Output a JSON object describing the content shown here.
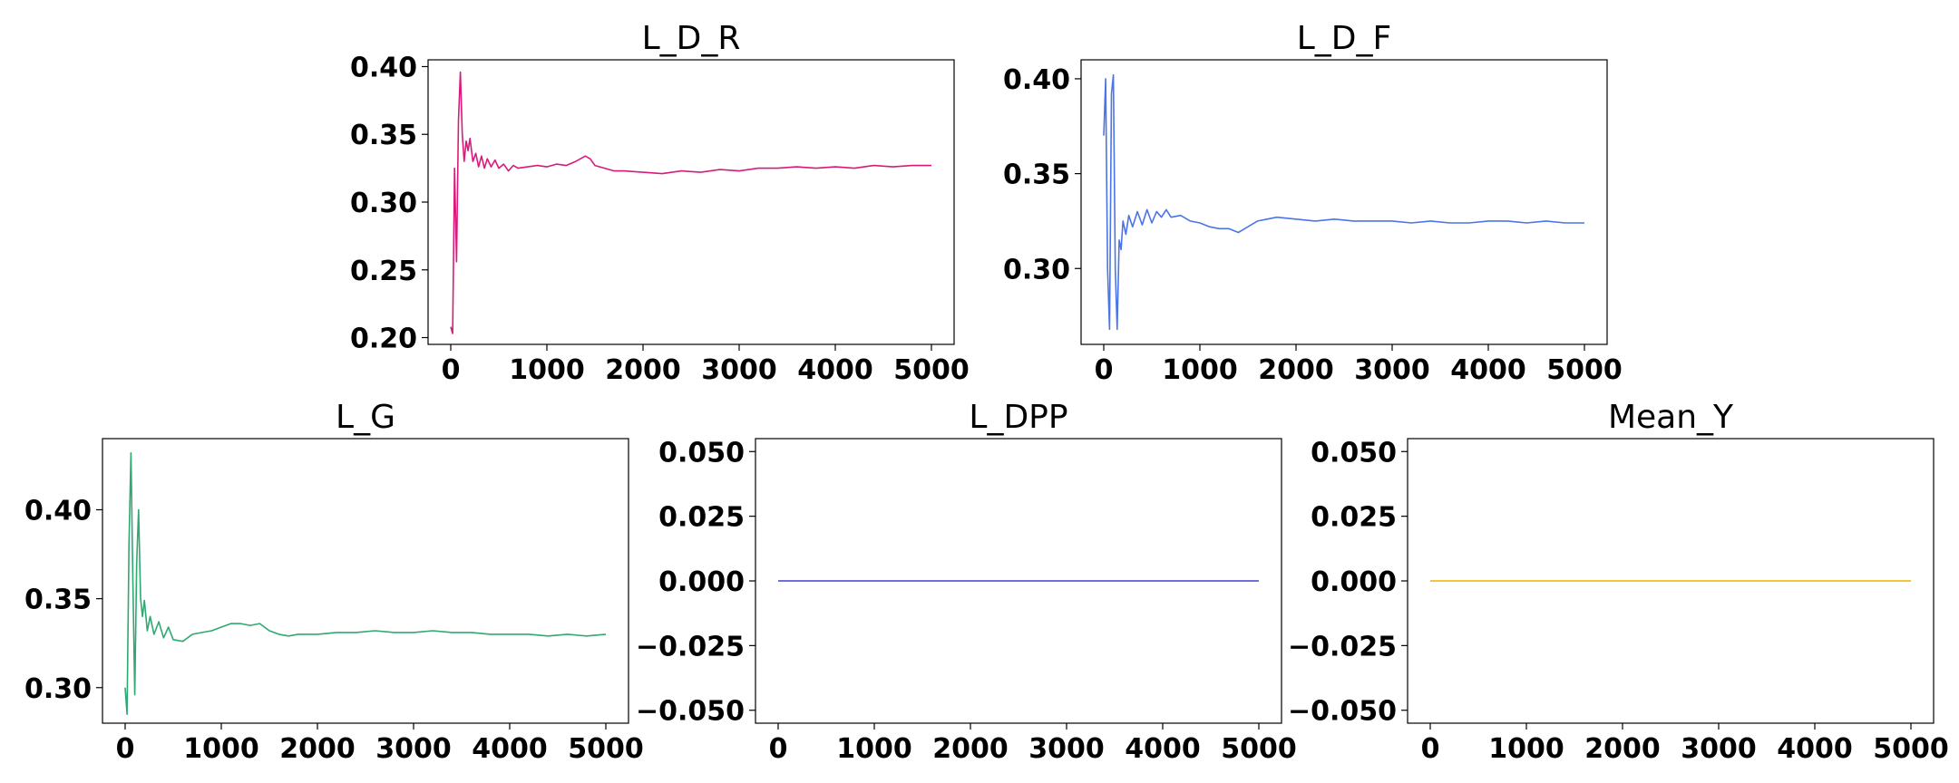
{
  "chart_data": [
    {
      "type": "line",
      "title": "L_D_R",
      "xlim": [
        0,
        5000
      ],
      "ylim": [
        0.195,
        0.405
      ],
      "xticks": [
        0,
        1000,
        2000,
        3000,
        4000,
        5000
      ],
      "xtick_labels": [
        "0",
        "1000",
        "2000",
        "3000",
        "4000",
        "5000"
      ],
      "yticks": [
        0.2,
        0.25,
        0.3,
        0.35,
        0.4
      ],
      "ytick_labels": [
        "0.20",
        "0.25",
        "0.30",
        "0.35",
        "0.40"
      ],
      "grid": false,
      "color": "#d81b7a",
      "series": [
        {
          "x": [
            0,
            20,
            40,
            60,
            80,
            100,
            120,
            140,
            160,
            180,
            200,
            230,
            260,
            290,
            320,
            350,
            380,
            420,
            460,
            500,
            550,
            600,
            650,
            700,
            800,
            900,
            1000,
            1100,
            1200,
            1300,
            1400,
            1450,
            1500,
            1600,
            1700,
            1800,
            2000,
            2200,
            2400,
            2600,
            2800,
            3000,
            3200,
            3400,
            3600,
            3800,
            4000,
            4200,
            4400,
            4600,
            4800,
            5000
          ],
          "y": [
            0.208,
            0.203,
            0.325,
            0.256,
            0.36,
            0.396,
            0.35,
            0.33,
            0.345,
            0.338,
            0.347,
            0.33,
            0.336,
            0.326,
            0.334,
            0.325,
            0.332,
            0.326,
            0.331,
            0.325,
            0.328,
            0.323,
            0.327,
            0.325,
            0.326,
            0.327,
            0.326,
            0.328,
            0.327,
            0.33,
            0.334,
            0.332,
            0.327,
            0.325,
            0.323,
            0.323,
            0.322,
            0.321,
            0.323,
            0.322,
            0.324,
            0.323,
            0.325,
            0.325,
            0.326,
            0.325,
            0.326,
            0.325,
            0.327,
            0.326,
            0.327,
            0.327
          ]
        }
      ]
    },
    {
      "type": "line",
      "title": "L_D_F",
      "xlim": [
        0,
        5000
      ],
      "ylim": [
        0.26,
        0.41
      ],
      "xticks": [
        0,
        1000,
        2000,
        3000,
        4000,
        5000
      ],
      "xtick_labels": [
        "0",
        "1000",
        "2000",
        "3000",
        "4000",
        "5000"
      ],
      "yticks": [
        0.3,
        0.35,
        0.4
      ],
      "ytick_labels": [
        "0.30",
        "0.35",
        "0.40"
      ],
      "grid": false,
      "color": "#4b74e8",
      "series": [
        {
          "x": [
            0,
            20,
            40,
            60,
            80,
            100,
            120,
            140,
            160,
            180,
            200,
            230,
            260,
            300,
            350,
            400,
            450,
            500,
            550,
            600,
            650,
            700,
            800,
            900,
            1000,
            1100,
            1200,
            1300,
            1400,
            1500,
            1600,
            1700,
            1800,
            2000,
            2200,
            2400,
            2600,
            2800,
            3000,
            3200,
            3400,
            3600,
            3800,
            4000,
            4200,
            4400,
            4600,
            4800,
            5000
          ],
          "y": [
            0.37,
            0.4,
            0.3,
            0.268,
            0.392,
            0.402,
            0.3,
            0.268,
            0.315,
            0.31,
            0.325,
            0.318,
            0.328,
            0.322,
            0.33,
            0.323,
            0.331,
            0.324,
            0.33,
            0.327,
            0.331,
            0.327,
            0.328,
            0.325,
            0.324,
            0.322,
            0.321,
            0.321,
            0.319,
            0.322,
            0.325,
            0.326,
            0.327,
            0.326,
            0.325,
            0.326,
            0.325,
            0.325,
            0.325,
            0.324,
            0.325,
            0.324,
            0.324,
            0.325,
            0.325,
            0.324,
            0.325,
            0.324,
            0.324
          ]
        }
      ]
    },
    {
      "type": "line",
      "title": "L_G",
      "xlim": [
        0,
        5000
      ],
      "ylim": [
        0.28,
        0.44
      ],
      "xticks": [
        0,
        1000,
        2000,
        3000,
        4000,
        5000
      ],
      "xtick_labels": [
        "0",
        "1000",
        "2000",
        "3000",
        "4000",
        "5000"
      ],
      "yticks": [
        0.3,
        0.35,
        0.4
      ],
      "ytick_labels": [
        "0.30",
        "0.35",
        "0.40"
      ],
      "grid": false,
      "color": "#2fa872",
      "series": [
        {
          "x": [
            0,
            20,
            40,
            60,
            80,
            100,
            120,
            140,
            160,
            180,
            200,
            230,
            260,
            300,
            350,
            400,
            450,
            500,
            600,
            700,
            800,
            900,
            1000,
            1100,
            1200,
            1300,
            1400,
            1500,
            1600,
            1700,
            1800,
            2000,
            2200,
            2400,
            2600,
            2800,
            3000,
            3200,
            3400,
            3600,
            3800,
            4000,
            4200,
            4400,
            4600,
            4800,
            5000
          ],
          "y": [
            0.3,
            0.285,
            0.38,
            0.432,
            0.36,
            0.296,
            0.37,
            0.4,
            0.35,
            0.34,
            0.349,
            0.332,
            0.34,
            0.33,
            0.337,
            0.328,
            0.334,
            0.327,
            0.326,
            0.33,
            0.331,
            0.332,
            0.334,
            0.336,
            0.336,
            0.335,
            0.336,
            0.332,
            0.33,
            0.329,
            0.33,
            0.33,
            0.331,
            0.331,
            0.332,
            0.331,
            0.331,
            0.332,
            0.331,
            0.331,
            0.33,
            0.33,
            0.33,
            0.329,
            0.33,
            0.329,
            0.33
          ]
        }
      ]
    },
    {
      "type": "line",
      "title": "L_DPP",
      "xlim": [
        0,
        5000
      ],
      "ylim": [
        -0.055,
        0.055
      ],
      "xticks": [
        0,
        1000,
        2000,
        3000,
        4000,
        5000
      ],
      "xtick_labels": [
        "0",
        "1000",
        "2000",
        "3000",
        "4000",
        "5000"
      ],
      "yticks": [
        -0.05,
        -0.025,
        0.0,
        0.025,
        0.05
      ],
      "ytick_labels": [
        "−0.050",
        "−0.025",
        "0.000",
        "0.025",
        "0.050"
      ],
      "grid": false,
      "color": "#3f3fd0",
      "series": [
        {
          "x": [
            0,
            5000
          ],
          "y": [
            0,
            0
          ]
        }
      ]
    },
    {
      "type": "line",
      "title": "Mean_Y",
      "xlim": [
        0,
        5000
      ],
      "ylim": [
        -0.055,
        0.055
      ],
      "xticks": [
        0,
        1000,
        2000,
        3000,
        4000,
        5000
      ],
      "xtick_labels": [
        "0",
        "1000",
        "2000",
        "3000",
        "4000",
        "5000"
      ],
      "yticks": [
        -0.05,
        -0.025,
        0.0,
        0.025,
        0.05
      ],
      "ytick_labels": [
        "−0.050",
        "−0.025",
        "0.000",
        "0.025",
        "0.050"
      ],
      "grid": false,
      "color": "#f2b200",
      "series": [
        {
          "x": [
            0,
            5000
          ],
          "y": [
            0,
            0
          ]
        }
      ]
    }
  ]
}
